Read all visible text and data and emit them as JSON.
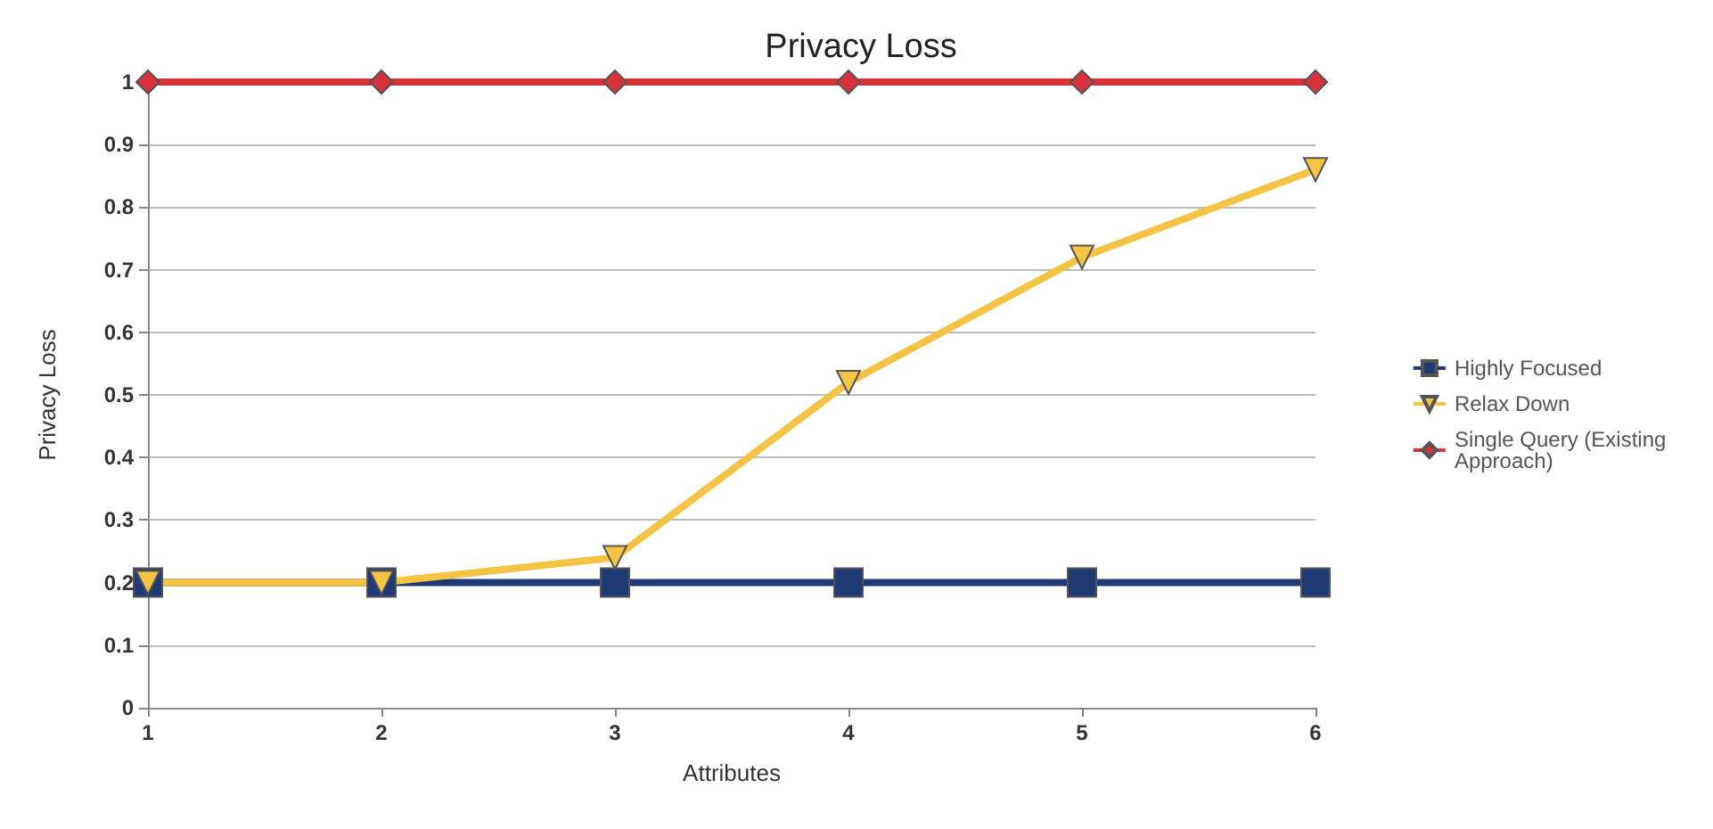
{
  "chart_data": {
    "type": "line",
    "title": "Privacy Loss",
    "xlabel": "Attributes",
    "ylabel": "Privacy Loss",
    "x": [
      1,
      2,
      3,
      4,
      5,
      6
    ],
    "xlim": [
      1,
      6
    ],
    "xticks": [
      1,
      2,
      3,
      4,
      5,
      6
    ],
    "ylim": [
      0,
      1
    ],
    "yticks": [
      0,
      0.1,
      0.2,
      0.3,
      0.4,
      0.5,
      0.6,
      0.7,
      0.8,
      0.9,
      1
    ],
    "grid": "y",
    "legend": "right",
    "series": [
      {
        "name": "Highly Focused",
        "color": "#1f3a75",
        "marker": "square",
        "values": [
          0.2,
          0.2,
          0.2,
          0.2,
          0.2,
          0.2
        ]
      },
      {
        "name": "Relax Down",
        "color": "#f5c445",
        "marker": "triangle",
        "values": [
          0.2,
          0.2,
          0.24,
          0.52,
          0.72,
          0.86
        ]
      },
      {
        "name": "Single Query (Existing Approach)",
        "color": "#d8323c",
        "marker": "diamond",
        "values": [
          1,
          1,
          1,
          1,
          1,
          1
        ]
      }
    ]
  }
}
